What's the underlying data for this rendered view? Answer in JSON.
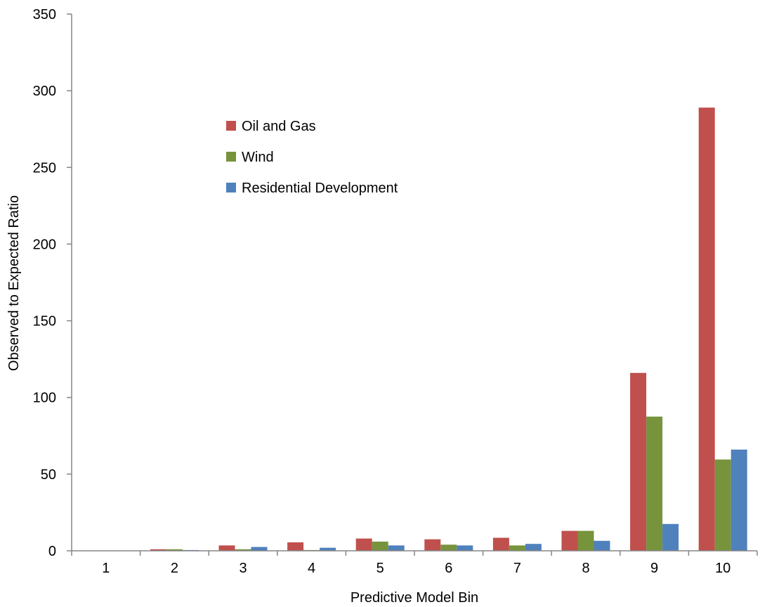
{
  "chart_data": {
    "type": "bar",
    "xlabel": "Predictive Model Bin",
    "ylabel": "Observed to Expected Ratio",
    "ylim": [
      0,
      350
    ],
    "yticks": [
      0,
      50,
      100,
      150,
      200,
      250,
      300,
      350
    ],
    "categories": [
      "1",
      "2",
      "3",
      "4",
      "5",
      "6",
      "7",
      "8",
      "9",
      "10"
    ],
    "series": [
      {
        "name": "Oil and Gas",
        "color": "#C0504D",
        "values": [
          0,
          1,
          3.5,
          5.5,
          8,
          7.5,
          8.5,
          13,
          116,
          289
        ]
      },
      {
        "name": "Wind",
        "color": "#77933C",
        "values": [
          0,
          1,
          1,
          0.5,
          6,
          4,
          3.5,
          13,
          87.5,
          59.5
        ]
      },
      {
        "name": "Residential Development",
        "color": "#4F81BD",
        "values": [
          0,
          0.5,
          2.5,
          2,
          3.5,
          3.5,
          4.5,
          6.5,
          17.5,
          66
        ]
      }
    ],
    "legend_position": "upper-left inside plot",
    "grid": false
  }
}
